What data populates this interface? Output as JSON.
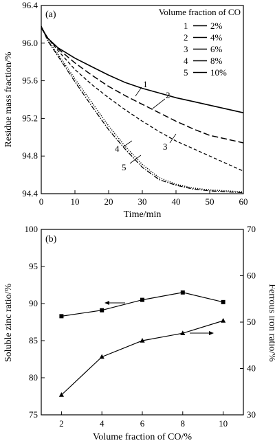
{
  "chart_data": [
    {
      "type": "line",
      "panel_label": "(a)",
      "title": "",
      "xlabel": "Time/min",
      "ylabel": "Residue mass fraction/%",
      "xlim": [
        0,
        60
      ],
      "ylim": [
        94.4,
        96.4
      ],
      "xticks": [
        0,
        10,
        20,
        30,
        40,
        50,
        60
      ],
      "yticks": [
        94.4,
        94.8,
        95.2,
        95.6,
        96.0,
        96.4
      ],
      "legend": {
        "title": "Volume fraction of CO",
        "placement": "top-right",
        "entries": [
          {
            "num": "1",
            "label": "2%"
          },
          {
            "num": "2",
            "label": "4%"
          },
          {
            "num": "3",
            "label": "6%"
          },
          {
            "num": "4",
            "label": "8%"
          },
          {
            "num": "5",
            "label": "10%"
          }
        ]
      },
      "series": [
        {
          "name": "2%",
          "num": "1",
          "dash": "solid",
          "x": [
            0,
            2,
            5,
            10,
            15,
            20,
            25,
            30,
            35,
            40,
            45,
            50,
            55,
            60
          ],
          "y": [
            96.16,
            96.05,
            95.95,
            95.84,
            95.75,
            95.66,
            95.58,
            95.52,
            95.47,
            95.42,
            95.38,
            95.34,
            95.3,
            95.26
          ]
        },
        {
          "name": "4%",
          "num": "2",
          "dash": "long-dash",
          "x": [
            0,
            2,
            5,
            10,
            15,
            20,
            25,
            30,
            35,
            40,
            45,
            50,
            55,
            60
          ],
          "y": [
            96.17,
            96.05,
            95.94,
            95.79,
            95.66,
            95.54,
            95.44,
            95.35,
            95.26,
            95.17,
            95.09,
            95.02,
            94.98,
            94.94
          ]
        },
        {
          "name": "6%",
          "num": "3",
          "dash": "dash",
          "x": [
            0,
            2,
            5,
            10,
            15,
            20,
            25,
            30,
            35,
            40,
            45,
            50,
            55,
            60
          ],
          "y": [
            96.17,
            96.05,
            95.92,
            95.72,
            95.56,
            95.42,
            95.29,
            95.17,
            95.06,
            94.96,
            94.88,
            94.8,
            94.72,
            94.64
          ]
        },
        {
          "name": "8%",
          "num": "4",
          "dash": "dot",
          "x": [
            0,
            2,
            5,
            10,
            15,
            20,
            25,
            30,
            35,
            40,
            45,
            50,
            55,
            60
          ],
          "y": [
            96.18,
            96.03,
            95.88,
            95.62,
            95.37,
            95.12,
            94.9,
            94.71,
            94.57,
            94.5,
            94.46,
            94.44,
            94.43,
            94.42
          ]
        },
        {
          "name": "10%",
          "num": "5",
          "dash": "dash-dot",
          "x": [
            0,
            2,
            5,
            10,
            15,
            20,
            25,
            30,
            35,
            40,
            45,
            50,
            55,
            60
          ],
          "y": [
            96.18,
            96.02,
            95.86,
            95.59,
            95.33,
            95.08,
            94.87,
            94.68,
            94.55,
            94.49,
            94.45,
            94.43,
            94.42,
            94.41
          ]
        }
      ],
      "annotations": [
        "1",
        "2",
        "3",
        "4",
        "5"
      ]
    },
    {
      "type": "line",
      "panel_label": "(b)",
      "title": "",
      "xlabel": "Volume fraction of CO/%",
      "ylabel": "Soluble zinc ratio/%",
      "y2label": "Ferrous iron ratio/%",
      "xlim": [
        1,
        11
      ],
      "ylim": [
        75,
        100
      ],
      "y2lim": [
        30,
        70
      ],
      "xticks": [
        2,
        4,
        6,
        8,
        10
      ],
      "yticks": [
        75,
        80,
        85,
        90,
        95,
        100
      ],
      "y2ticks": [
        30,
        40,
        50,
        60,
        70
      ],
      "grid": false,
      "series": [
        {
          "axis": "left",
          "marker": "square",
          "x": [
            2,
            4,
            6,
            8,
            10
          ],
          "y": [
            88.3,
            89.1,
            90.5,
            91.5,
            90.2
          ]
        },
        {
          "axis": "right",
          "marker": "triangle",
          "x": [
            2,
            4,
            6,
            8,
            10
          ],
          "y": [
            34.3,
            42.5,
            46.0,
            47.6,
            50.3
          ]
        }
      ]
    }
  ]
}
